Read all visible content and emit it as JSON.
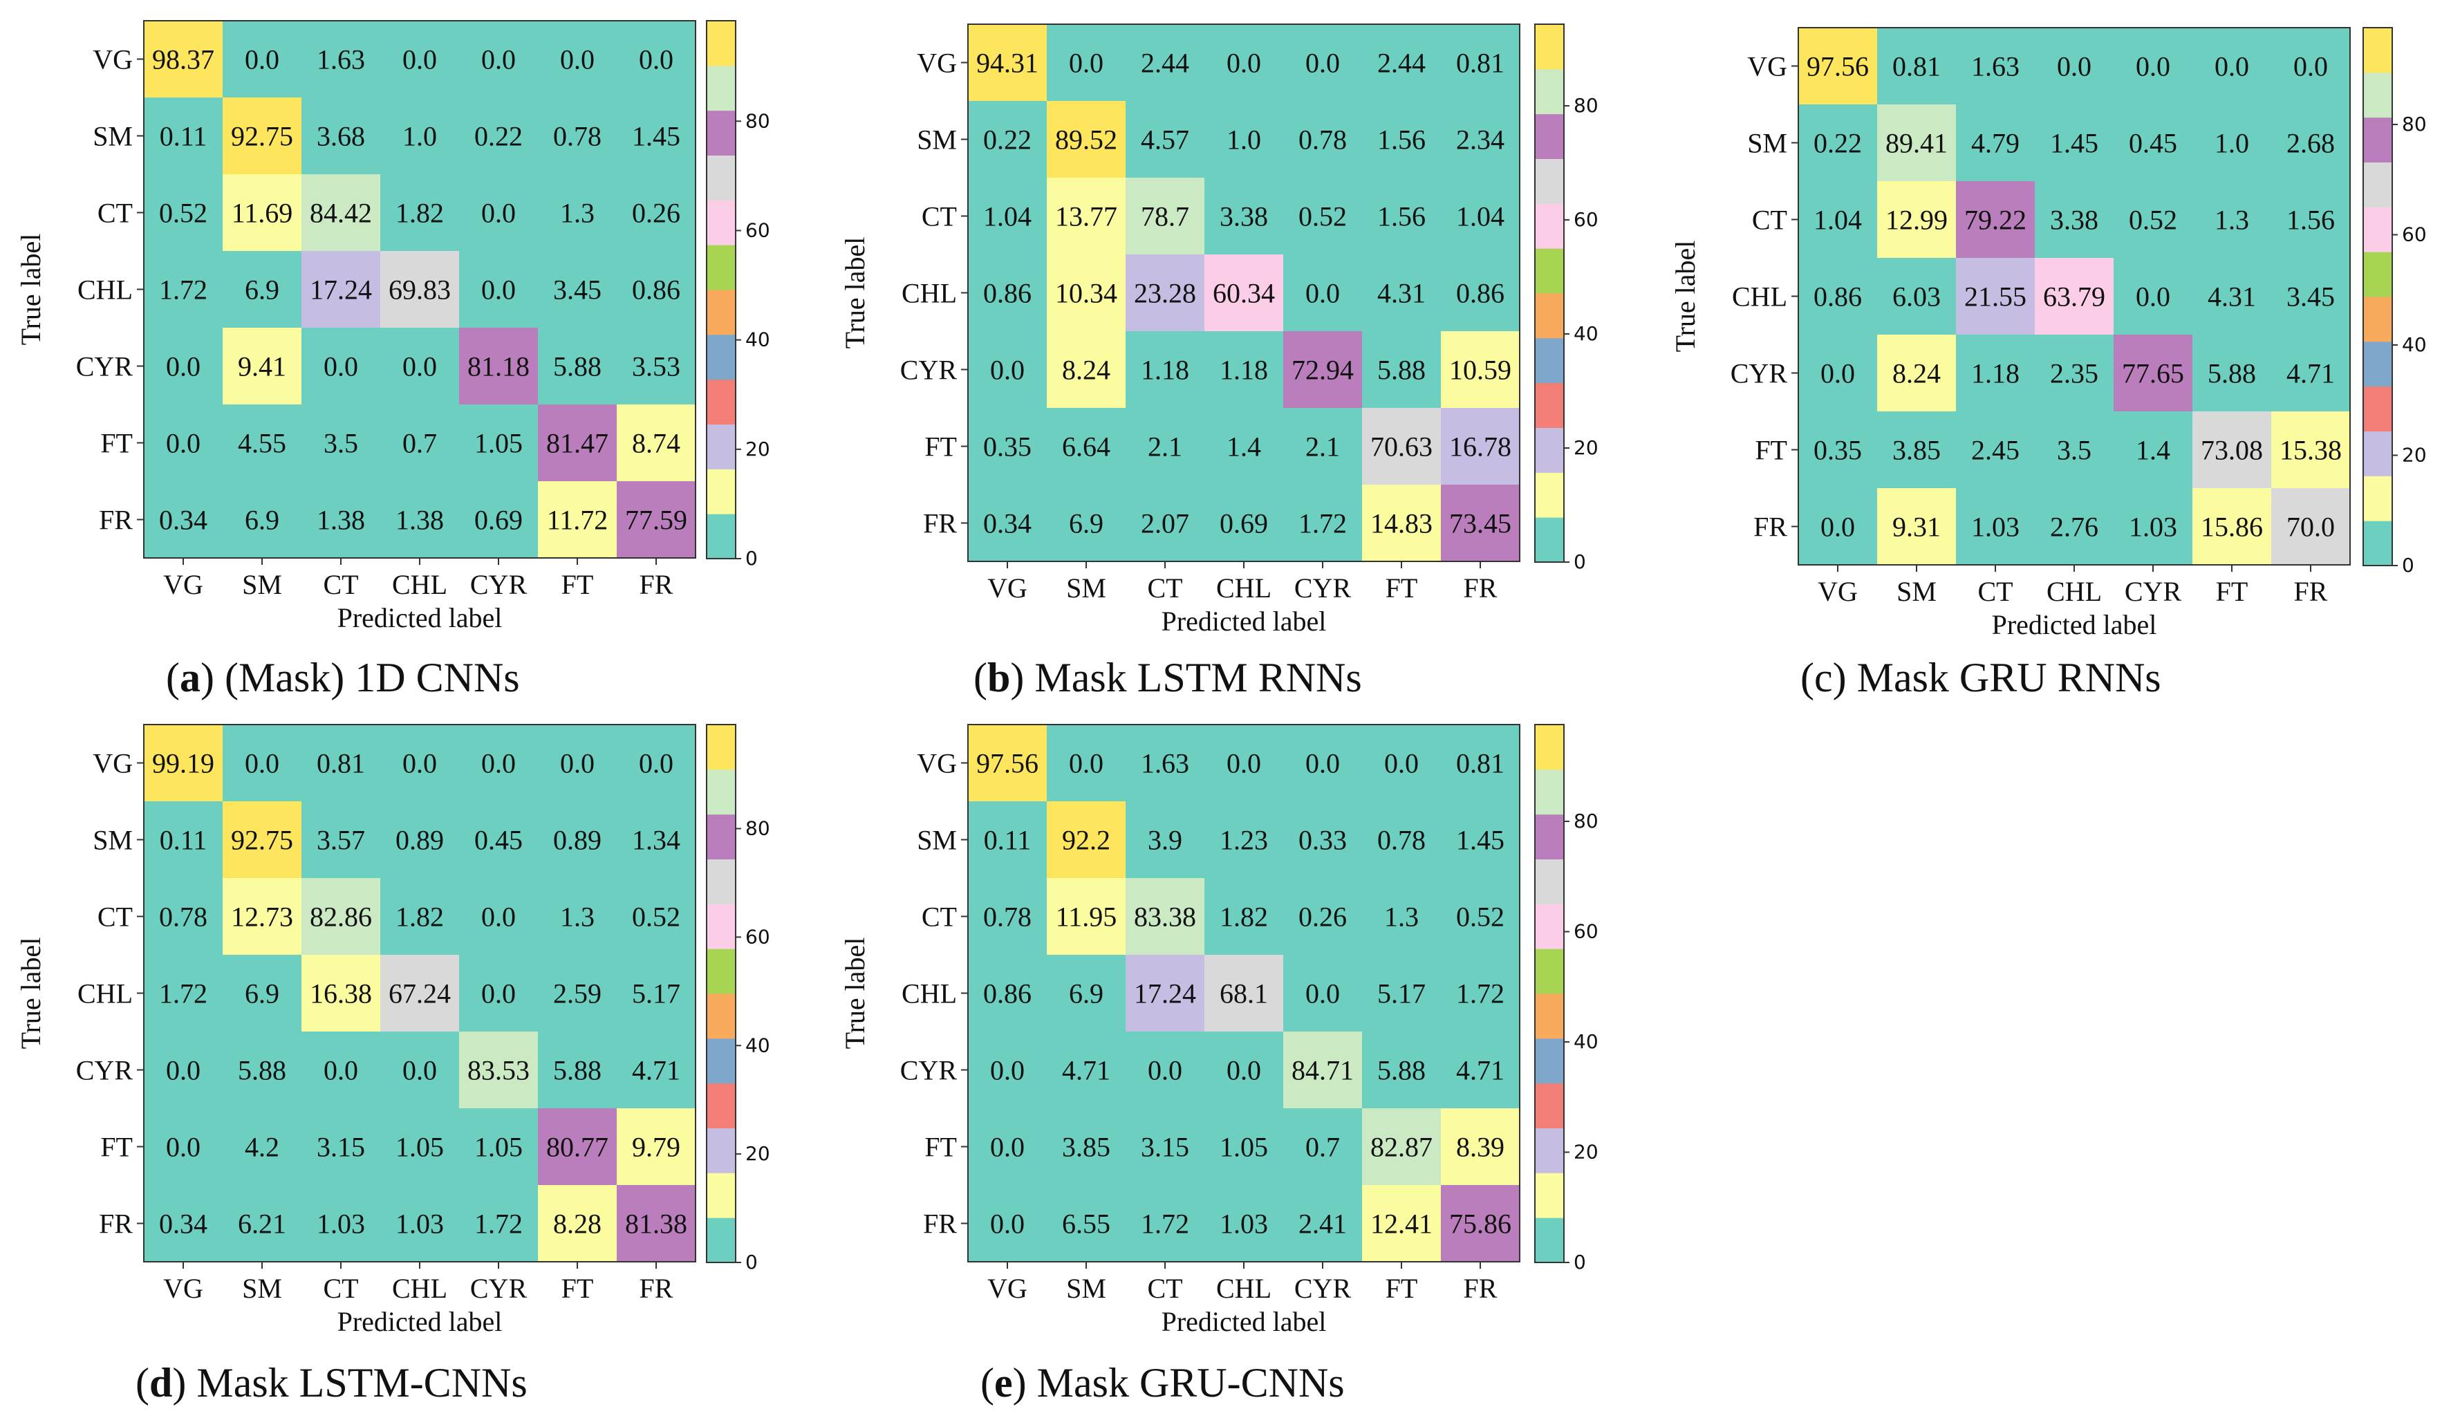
{
  "chart_data": [
    {
      "type": "heatmap",
      "caption_letter": "a",
      "caption_text": " (Mask) 1D CNNs",
      "xlabel": "Predicted label",
      "ylabel": "True label",
      "row_labels": [
        "VG",
        "SM",
        "CT",
        "CHL",
        "CYR",
        "FT",
        "FR"
      ],
      "col_labels": [
        "VG",
        "SM",
        "CT",
        "CHL",
        "CYR",
        "FT",
        "FR"
      ],
      "values": [
        [
          98.37,
          0.0,
          1.63,
          0.0,
          0.0,
          0.0,
          0.0
        ],
        [
          0.11,
          92.75,
          3.68,
          1.0,
          0.22,
          0.78,
          1.45
        ],
        [
          0.52,
          11.69,
          84.42,
          1.82,
          0.0,
          1.3,
          0.26
        ],
        [
          1.72,
          6.9,
          17.24,
          69.83,
          0.0,
          3.45,
          0.86
        ],
        [
          0.0,
          9.41,
          0.0,
          0.0,
          81.18,
          5.88,
          3.53
        ],
        [
          0.0,
          4.55,
          3.5,
          0.7,
          1.05,
          81.47,
          8.74
        ],
        [
          0.34,
          6.9,
          1.38,
          1.38,
          0.69,
          11.72,
          77.59
        ]
      ],
      "labels": [
        [
          "98.37",
          "0.0",
          "1.63",
          "0.0",
          "0.0",
          "0.0",
          "0.0"
        ],
        [
          "0.11",
          "92.75",
          "3.68",
          "1.0",
          "0.22",
          "0.78",
          "1.45"
        ],
        [
          "0.52",
          "11.69",
          "84.42",
          "1.82",
          "0.0",
          "1.3",
          "0.26"
        ],
        [
          "1.72",
          "6.9",
          "17.24",
          "69.83",
          "0.0",
          "3.45",
          "0.86"
        ],
        [
          "0.0",
          "9.41",
          "0.0",
          "0.0",
          "81.18",
          "5.88",
          "3.53"
        ],
        [
          "0.0",
          "4.55",
          "3.5",
          "0.7",
          "1.05",
          "81.47",
          "8.74"
        ],
        [
          "0.34",
          "6.9",
          "1.38",
          "1.38",
          "0.69",
          "11.72",
          "77.59"
        ]
      ],
      "colorbar_ticks": [
        "0",
        "20",
        "40",
        "60",
        "80"
      ],
      "colorbar_range": [
        0,
        98.37
      ]
    },
    {
      "type": "heatmap",
      "caption_letter": "b",
      "caption_text": " Mask LSTM RNNs",
      "xlabel": "Predicted label",
      "ylabel": "True label",
      "row_labels": [
        "VG",
        "SM",
        "CT",
        "CHL",
        "CYR",
        "FT",
        "FR"
      ],
      "col_labels": [
        "VG",
        "SM",
        "CT",
        "CHL",
        "CYR",
        "FT",
        "FR"
      ],
      "values": [
        [
          94.31,
          0.0,
          2.44,
          0.0,
          0.0,
          2.44,
          0.81
        ],
        [
          0.22,
          89.52,
          4.57,
          1.0,
          0.78,
          1.56,
          2.34
        ],
        [
          1.04,
          13.77,
          78.7,
          3.38,
          0.52,
          1.56,
          1.04
        ],
        [
          0.86,
          10.34,
          23.28,
          60.34,
          0.0,
          4.31,
          0.86
        ],
        [
          0.0,
          8.24,
          1.18,
          1.18,
          72.94,
          5.88,
          10.59
        ],
        [
          0.35,
          6.64,
          2.1,
          1.4,
          2.1,
          70.63,
          16.78
        ],
        [
          0.34,
          6.9,
          2.07,
          0.69,
          1.72,
          14.83,
          73.45
        ]
      ],
      "labels": [
        [
          "94.31",
          "0.0",
          "2.44",
          "0.0",
          "0.0",
          "2.44",
          "0.81"
        ],
        [
          "0.22",
          "89.52",
          "4.57",
          "1.0",
          "0.78",
          "1.56",
          "2.34"
        ],
        [
          "1.04",
          "13.77",
          "78.7",
          "3.38",
          "0.52",
          "1.56",
          "1.04"
        ],
        [
          "0.86",
          "10.34",
          "23.28",
          "60.34",
          "0.0",
          "4.31",
          "0.86"
        ],
        [
          "0.0",
          "8.24",
          "1.18",
          "1.18",
          "72.94",
          "5.88",
          "10.59"
        ],
        [
          "0.35",
          "6.64",
          "2.1",
          "1.4",
          "2.1",
          "70.63",
          "16.78"
        ],
        [
          "0.34",
          "6.9",
          "2.07",
          "0.69",
          "1.72",
          "14.83",
          "73.45"
        ]
      ],
      "colorbar_ticks": [
        "0",
        "20",
        "40",
        "60",
        "80"
      ],
      "colorbar_range": [
        0,
        94.31
      ]
    },
    {
      "type": "heatmap",
      "caption_letter": "",
      "caption_text": "(c) Mask GRU RNNs",
      "xlabel": "Predicted label",
      "ylabel": "True label",
      "row_labels": [
        "VG",
        "SM",
        "CT",
        "CHL",
        "CYR",
        "FT",
        "FR"
      ],
      "col_labels": [
        "VG",
        "SM",
        "CT",
        "CHL",
        "CYR",
        "FT",
        "FR"
      ],
      "values": [
        [
          97.56,
          0.81,
          1.63,
          0.0,
          0.0,
          0.0,
          0.0
        ],
        [
          0.22,
          89.41,
          4.79,
          1.45,
          0.45,
          1.0,
          2.68
        ],
        [
          1.04,
          12.99,
          79.22,
          3.38,
          0.52,
          1.3,
          1.56
        ],
        [
          0.86,
          6.03,
          21.55,
          63.79,
          0.0,
          4.31,
          3.45
        ],
        [
          0.0,
          8.24,
          1.18,
          2.35,
          77.65,
          5.88,
          4.71
        ],
        [
          0.35,
          3.85,
          2.45,
          3.5,
          1.4,
          73.08,
          15.38
        ],
        [
          0.0,
          9.31,
          1.03,
          2.76,
          1.03,
          15.86,
          70.0
        ]
      ],
      "labels": [
        [
          "97.56",
          "0.81",
          "1.63",
          "0.0",
          "0.0",
          "0.0",
          "0.0"
        ],
        [
          "0.22",
          "89.41",
          "4.79",
          "1.45",
          "0.45",
          "1.0",
          "2.68"
        ],
        [
          "1.04",
          "12.99",
          "79.22",
          "3.38",
          "0.52",
          "1.3",
          "1.56"
        ],
        [
          "0.86",
          "6.03",
          "21.55",
          "63.79",
          "0.0",
          "4.31",
          "3.45"
        ],
        [
          "0.0",
          "8.24",
          "1.18",
          "2.35",
          "77.65",
          "5.88",
          "4.71"
        ],
        [
          "0.35",
          "3.85",
          "2.45",
          "3.5",
          "1.4",
          "73.08",
          "15.38"
        ],
        [
          "0.0",
          "9.31",
          "1.03",
          "2.76",
          "1.03",
          "15.86",
          "70.0"
        ]
      ],
      "colorbar_ticks": [
        "0",
        "20",
        "40",
        "60",
        "80"
      ],
      "colorbar_range": [
        0,
        97.56
      ]
    },
    {
      "type": "heatmap",
      "caption_letter": "d",
      "caption_text": " Mask LSTM-CNNs",
      "xlabel": "Predicted label",
      "ylabel": "True label",
      "row_labels": [
        "VG",
        "SM",
        "CT",
        "CHL",
        "CYR",
        "FT",
        "FR"
      ],
      "col_labels": [
        "VG",
        "SM",
        "CT",
        "CHL",
        "CYR",
        "FT",
        "FR"
      ],
      "values": [
        [
          99.19,
          0.0,
          0.81,
          0.0,
          0.0,
          0.0,
          0.0
        ],
        [
          0.11,
          92.75,
          3.57,
          0.89,
          0.45,
          0.89,
          1.34
        ],
        [
          0.78,
          12.73,
          82.86,
          1.82,
          0.0,
          1.3,
          0.52
        ],
        [
          1.72,
          6.9,
          16.38,
          67.24,
          0.0,
          2.59,
          5.17
        ],
        [
          0.0,
          5.88,
          0.0,
          0.0,
          83.53,
          5.88,
          4.71
        ],
        [
          0.0,
          4.2,
          3.15,
          1.05,
          1.05,
          80.77,
          9.79
        ],
        [
          0.34,
          6.21,
          1.03,
          1.03,
          1.72,
          8.28,
          81.38
        ]
      ],
      "labels": [
        [
          "99.19",
          "0.0",
          "0.81",
          "0.0",
          "0.0",
          "0.0",
          "0.0"
        ],
        [
          "0.11",
          "92.75",
          "3.57",
          "0.89",
          "0.45",
          "0.89",
          "1.34"
        ],
        [
          "0.78",
          "12.73",
          "82.86",
          "1.82",
          "0.0",
          "1.3",
          "0.52"
        ],
        [
          "1.72",
          "6.9",
          "16.38",
          "67.24",
          "0.0",
          "2.59",
          "5.17"
        ],
        [
          "0.0",
          "5.88",
          "0.0",
          "0.0",
          "83.53",
          "5.88",
          "4.71"
        ],
        [
          "0.0",
          "4.2",
          "3.15",
          "1.05",
          "1.05",
          "80.77",
          "9.79"
        ],
        [
          "0.34",
          "6.21",
          "1.03",
          "1.03",
          "1.72",
          "8.28",
          "81.38"
        ]
      ],
      "colorbar_ticks": [
        "0",
        "20",
        "40",
        "60",
        "80"
      ],
      "colorbar_range": [
        0,
        99.19
      ]
    },
    {
      "type": "heatmap",
      "caption_letter": "e",
      "caption_text": " Mask GRU-CNNs",
      "xlabel": "Predicted label",
      "ylabel": "True label",
      "row_labels": [
        "VG",
        "SM",
        "CT",
        "CHL",
        "CYR",
        "FT",
        "FR"
      ],
      "col_labels": [
        "VG",
        "SM",
        "CT",
        "CHL",
        "CYR",
        "FT",
        "FR"
      ],
      "values": [
        [
          97.56,
          0.0,
          1.63,
          0.0,
          0.0,
          0.0,
          0.81
        ],
        [
          0.11,
          92.2,
          3.9,
          1.23,
          0.33,
          0.78,
          1.45
        ],
        [
          0.78,
          11.95,
          83.38,
          1.82,
          0.26,
          1.3,
          0.52
        ],
        [
          0.86,
          6.9,
          17.24,
          68.1,
          0.0,
          5.17,
          1.72
        ],
        [
          0.0,
          4.71,
          0.0,
          0.0,
          84.71,
          5.88,
          4.71
        ],
        [
          0.0,
          3.85,
          3.15,
          1.05,
          0.7,
          82.87,
          8.39
        ],
        [
          0.0,
          6.55,
          1.72,
          1.03,
          2.41,
          12.41,
          75.86
        ]
      ],
      "labels": [
        [
          "97.56",
          "0.0",
          "1.63",
          "0.0",
          "0.0",
          "0.0",
          "0.81"
        ],
        [
          "0.11",
          "92.2",
          "3.9",
          "1.23",
          "0.33",
          "0.78",
          "1.45"
        ],
        [
          "0.78",
          "11.95",
          "83.38",
          "1.82",
          "0.26",
          "1.3",
          "0.52"
        ],
        [
          "0.86",
          "6.9",
          "17.24",
          "68.1",
          "0.0",
          "5.17",
          "1.72"
        ],
        [
          "0.0",
          "4.71",
          "0.0",
          "0.0",
          "84.71",
          "5.88",
          "4.71"
        ],
        [
          "0.0",
          "3.85",
          "3.15",
          "1.05",
          "0.7",
          "82.87",
          "8.39"
        ],
        [
          "0.0",
          "6.55",
          "1.72",
          "1.03",
          "2.41",
          "12.41",
          "75.86"
        ]
      ],
      "colorbar_ticks": [
        "0",
        "20",
        "40",
        "60",
        "80"
      ],
      "colorbar_range": [
        0,
        97.56
      ]
    }
  ],
  "colormap": [
    "#6ccfbf",
    "#fbfba0",
    "#c6bde2",
    "#f37e76",
    "#7ea7cc",
    "#f8a95c",
    "#a7d451",
    "#fbcde6",
    "#d9d9d9",
    "#bb7ebd",
    "#cbeac4",
    "#fde65d"
  ]
}
